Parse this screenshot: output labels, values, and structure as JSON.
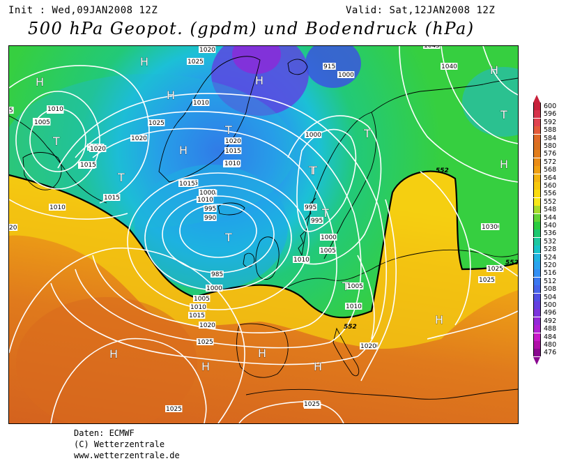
{
  "header": {
    "init": "Init : Wed,09JAN2008 12Z",
    "valid": "Valid: Sat,12JAN2008 12Z",
    "title": "500 hPa Geopot. (gpdm) und Bodendruck (hPa)"
  },
  "footer": {
    "line1": "Daten: ECMWF",
    "line2": "(C) Wetterzentrale",
    "line3": "www.wetterzentrale.de"
  },
  "legend": {
    "values": [
      "600",
      "596",
      "592",
      "588",
      "584",
      "580",
      "576",
      "572",
      "568",
      "564",
      "560",
      "556",
      "552",
      "548",
      "544",
      "540",
      "536",
      "532",
      "528",
      "524",
      "520",
      "516",
      "512",
      "508",
      "504",
      "500",
      "496",
      "492",
      "488",
      "484",
      "480",
      "476"
    ],
    "colors": [
      "#c8203a",
      "#d6334b",
      "#e0434f",
      "#e45a3a",
      "#e06a28",
      "#d97020",
      "#e27e1c",
      "#ea8c16",
      "#f0a012",
      "#f4b410",
      "#f7c80c",
      "#fadc10",
      "#f8e81a",
      "#a8dc2c",
      "#62d436",
      "#2ccc40",
      "#1ec870",
      "#1ec8a0",
      "#18c4c8",
      "#20b4e0",
      "#2aa4ee",
      "#3490f4",
      "#3c78f0",
      "#4664ea",
      "#5050e4",
      "#6440e0",
      "#7c34dc",
      "#9428d8",
      "#b020d4",
      "#c818c8",
      "#b010a8",
      "#8a0890"
    ]
  },
  "map": {
    "pressure_centers": [
      {
        "label": "H"
      },
      {
        "label": "H"
      },
      {
        "label": "H"
      },
      {
        "label": "H"
      },
      {
        "label": "H"
      },
      {
        "label": "H"
      },
      {
        "label": "H"
      },
      {
        "label": "H"
      },
      {
        "label": "H"
      },
      {
        "label": "H"
      },
      {
        "label": "H"
      },
      {
        "label": "H"
      },
      {
        "label": "T"
      },
      {
        "label": "T"
      },
      {
        "label": "T"
      },
      {
        "label": "T"
      },
      {
        "label": "T"
      },
      {
        "label": "T"
      },
      {
        "label": "T"
      },
      {
        "label": "T"
      },
      {
        "label": "T"
      },
      {
        "label": "T"
      },
      {
        "label": "T"
      }
    ],
    "isobar_labels": [
      "1020",
      "1025",
      "1010",
      "1005",
      "1010",
      "1020",
      "1015",
      "1015",
      "1010",
      "1015",
      "1025",
      "1025",
      "1020",
      "1015",
      "1020",
      "1010",
      "1015",
      "1010",
      "1005",
      "1000",
      "995",
      "990",
      "985",
      "1000",
      "1005",
      "1010",
      "1015",
      "1020",
      "1025",
      "1030",
      "1025",
      "1025",
      "1025",
      "1000",
      "995",
      "995",
      "1000",
      "1005",
      "1010",
      "1005",
      "1010",
      "1020",
      "1025",
      "1030",
      "1040",
      "1045",
      "1000",
      "915",
      "1010",
      "1005",
      "1015",
      "1020",
      "1020",
      "1025",
      "5",
      "20",
      "10"
    ],
    "contour_552_labels": [
      "552",
      "552",
      "552"
    ]
  }
}
